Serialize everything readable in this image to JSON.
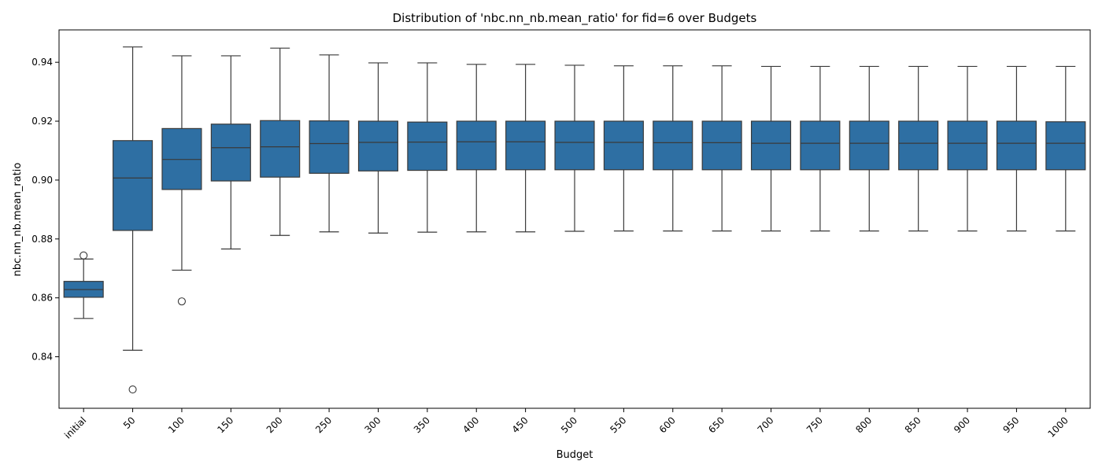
{
  "chart_data": {
    "type": "box",
    "title": "Distribution of 'nbc.nn_nb.mean_ratio' for fid=6 over Budgets",
    "xlabel": "Budget",
    "ylabel": "nbc.nn_nb.mean_ratio",
    "ylim": [
      0.8225,
      0.951
    ],
    "yticks": [
      0.84,
      0.86,
      0.88,
      0.9,
      0.92,
      0.94
    ],
    "ytick_labels": [
      "0.84",
      "0.86",
      "0.88",
      "0.90",
      "0.92",
      "0.94"
    ],
    "box_color": "#2e6fa3",
    "line_color": "#3a3a3a",
    "grid": false,
    "categories": [
      "initial",
      "50",
      "100",
      "150",
      "200",
      "250",
      "300",
      "350",
      "400",
      "450",
      "500",
      "550",
      "600",
      "650",
      "700",
      "750",
      "800",
      "850",
      "900",
      "950",
      "1000"
    ],
    "boxes": [
      {
        "category": "initial",
        "whisker_low": 0.853,
        "q1": 0.8602,
        "median": 0.8628,
        "q3": 0.8656,
        "whisker_high": 0.8732,
        "outliers": [
          0.8744
        ]
      },
      {
        "category": "50",
        "whisker_low": 0.8422,
        "q1": 0.8829,
        "median": 0.9007,
        "q3": 0.9134,
        "whisker_high": 0.9452,
        "outliers": [
          0.8289
        ]
      },
      {
        "category": "100",
        "whisker_low": 0.8694,
        "q1": 0.8968,
        "median": 0.907,
        "q3": 0.9175,
        "whisker_high": 0.9422,
        "outliers": [
          0.8588
        ]
      },
      {
        "category": "150",
        "whisker_low": 0.8766,
        "q1": 0.8997,
        "median": 0.911,
        "q3": 0.919,
        "whisker_high": 0.9422,
        "outliers": []
      },
      {
        "category": "200",
        "whisker_low": 0.8812,
        "q1": 0.901,
        "median": 0.9113,
        "q3": 0.9202,
        "whisker_high": 0.9448,
        "outliers": []
      },
      {
        "category": "250",
        "whisker_low": 0.8824,
        "q1": 0.9023,
        "median": 0.9124,
        "q3": 0.9201,
        "whisker_high": 0.9425,
        "outliers": []
      },
      {
        "category": "300",
        "whisker_low": 0.882,
        "q1": 0.9031,
        "median": 0.9128,
        "q3": 0.92,
        "whisker_high": 0.9398,
        "outliers": []
      },
      {
        "category": "350",
        "whisker_low": 0.8823,
        "q1": 0.9033,
        "median": 0.9129,
        "q3": 0.9197,
        "whisker_high": 0.9398,
        "outliers": []
      },
      {
        "category": "400",
        "whisker_low": 0.8824,
        "q1": 0.9035,
        "median": 0.913,
        "q3": 0.92,
        "whisker_high": 0.9393,
        "outliers": []
      },
      {
        "category": "450",
        "whisker_low": 0.8824,
        "q1": 0.9035,
        "median": 0.913,
        "q3": 0.92,
        "whisker_high": 0.9393,
        "outliers": []
      },
      {
        "category": "500",
        "whisker_low": 0.8826,
        "q1": 0.9035,
        "median": 0.9128,
        "q3": 0.92,
        "whisker_high": 0.939,
        "outliers": []
      },
      {
        "category": "550",
        "whisker_low": 0.8827,
        "q1": 0.9035,
        "median": 0.9128,
        "q3": 0.92,
        "whisker_high": 0.9388,
        "outliers": []
      },
      {
        "category": "600",
        "whisker_low": 0.8827,
        "q1": 0.9035,
        "median": 0.9127,
        "q3": 0.92,
        "whisker_high": 0.9388,
        "outliers": []
      },
      {
        "category": "650",
        "whisker_low": 0.8827,
        "q1": 0.9035,
        "median": 0.9127,
        "q3": 0.92,
        "whisker_high": 0.9388,
        "outliers": []
      },
      {
        "category": "700",
        "whisker_low": 0.8827,
        "q1": 0.9035,
        "median": 0.9125,
        "q3": 0.92,
        "whisker_high": 0.9386,
        "outliers": []
      },
      {
        "category": "750",
        "whisker_low": 0.8827,
        "q1": 0.9035,
        "median": 0.9125,
        "q3": 0.92,
        "whisker_high": 0.9386,
        "outliers": []
      },
      {
        "category": "800",
        "whisker_low": 0.8827,
        "q1": 0.9035,
        "median": 0.9125,
        "q3": 0.92,
        "whisker_high": 0.9386,
        "outliers": []
      },
      {
        "category": "850",
        "whisker_low": 0.8827,
        "q1": 0.9035,
        "median": 0.9125,
        "q3": 0.92,
        "whisker_high": 0.9386,
        "outliers": []
      },
      {
        "category": "900",
        "whisker_low": 0.8827,
        "q1": 0.9035,
        "median": 0.9125,
        "q3": 0.92,
        "whisker_high": 0.9386,
        "outliers": []
      },
      {
        "category": "950",
        "whisker_low": 0.8827,
        "q1": 0.9035,
        "median": 0.9125,
        "q3": 0.92,
        "whisker_high": 0.9386,
        "outliers": []
      },
      {
        "category": "1000",
        "whisker_low": 0.8827,
        "q1": 0.9035,
        "median": 0.9125,
        "q3": 0.9198,
        "whisker_high": 0.9386,
        "outliers": []
      }
    ]
  }
}
